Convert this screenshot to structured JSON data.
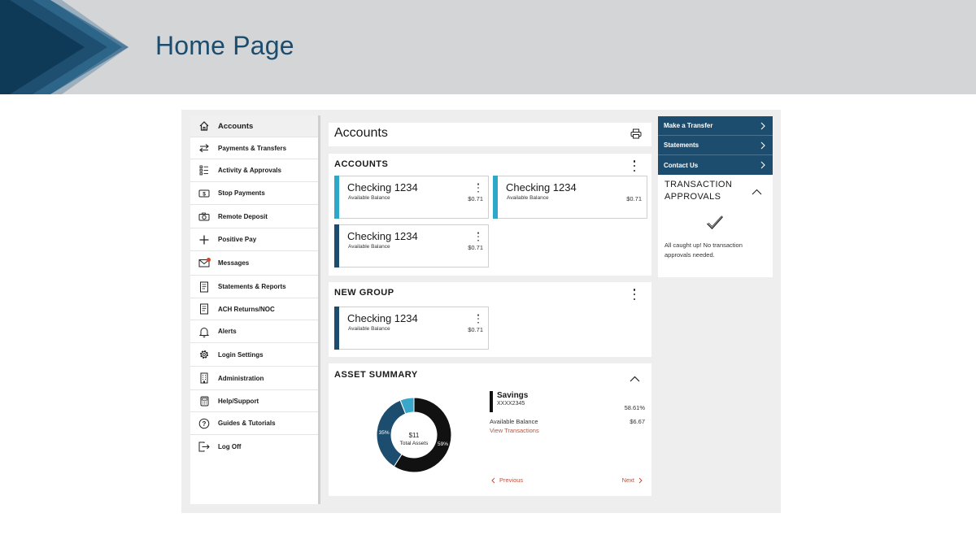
{
  "slide": {
    "title": "Home Page"
  },
  "colors": {
    "brand_dark": "#1d4d6e",
    "accent_teal": "#2ea8c8",
    "donut_black": "#111111",
    "donut_navy": "#1d4d6e",
    "donut_teal": "#3aa6c9",
    "link_red": "#c0503c"
  },
  "sidebar": {
    "items": [
      {
        "label": "Accounts",
        "icon": "home-icon",
        "active": true
      },
      {
        "label": "Payments & Transfers",
        "icon": "transfer-arrows-icon"
      },
      {
        "label": "Activity & Approvals",
        "icon": "checklist-icon"
      },
      {
        "label": "Stop Payments",
        "icon": "dollar-bill-icon"
      },
      {
        "label": "Remote Deposit",
        "icon": "camera-icon"
      },
      {
        "label": "Positive Pay",
        "icon": "plus-icon"
      },
      {
        "label": "Messages",
        "icon": "envelope-icon",
        "badge": true
      },
      {
        "label": "Statements & Reports",
        "icon": "document-icon"
      },
      {
        "label": "ACH Returns/NOC",
        "icon": "document-icon"
      },
      {
        "label": "Alerts",
        "icon": "bell-icon"
      },
      {
        "label": "Login Settings",
        "icon": "gear-icon"
      },
      {
        "label": "Administration",
        "icon": "building-icon"
      },
      {
        "label": "Help/Support",
        "icon": "calculator-icon"
      },
      {
        "label": "Guides & Tutorials",
        "icon": "question-icon"
      },
      {
        "label": "Log Off",
        "icon": "logout-icon"
      }
    ]
  },
  "header": {
    "title": "Accounts",
    "print_icon": "printer-icon"
  },
  "accounts_group": {
    "title": "ACCOUNTS",
    "cards": [
      {
        "name": "Checking 1234",
        "sub": "Available Balance",
        "amount": "$0.71",
        "bar_color": "#2ea8c8"
      },
      {
        "name": "Checking 1234",
        "sub": "Available Balance",
        "amount": "$0.71",
        "bar_color": "#2ea8c8"
      },
      {
        "name": "Checking 1234",
        "sub": "Available Balance",
        "amount": "$0.71",
        "bar_color": "#1d4d6e"
      }
    ]
  },
  "new_group": {
    "title": "NEW GROUP",
    "cards": [
      {
        "name": "Checking 1234",
        "sub": "Available Balance",
        "amount": "$0.71",
        "bar_color": "#1d4d6e"
      }
    ]
  },
  "asset_summary": {
    "title": "ASSET SUMMARY",
    "donut": {
      "center_value": "$11",
      "center_label": "Total Assets",
      "segments": [
        {
          "label": "59%",
          "value": 59,
          "color": "#111111"
        },
        {
          "label": "35%",
          "value": 35,
          "color": "#1d4d6e"
        },
        {
          "label": "",
          "value": 6,
          "color": "#3aa6c9"
        }
      ]
    },
    "detail": {
      "name": "Savings",
      "account": "XXXX2345",
      "percent": "58.61%",
      "balance_label": "Available Balance",
      "balance": "$6.67",
      "link": "View Transactions"
    },
    "pager": {
      "previous": "Previous",
      "next": "Next"
    }
  },
  "quick_links": [
    {
      "label": "Make a Transfer"
    },
    {
      "label": "Statements"
    },
    {
      "label": "Contact Us"
    }
  ],
  "approvals": {
    "title_line1": "TRANSACTION",
    "title_line2": "APPROVALS",
    "message": "All caught up! No transaction approvals needed."
  }
}
